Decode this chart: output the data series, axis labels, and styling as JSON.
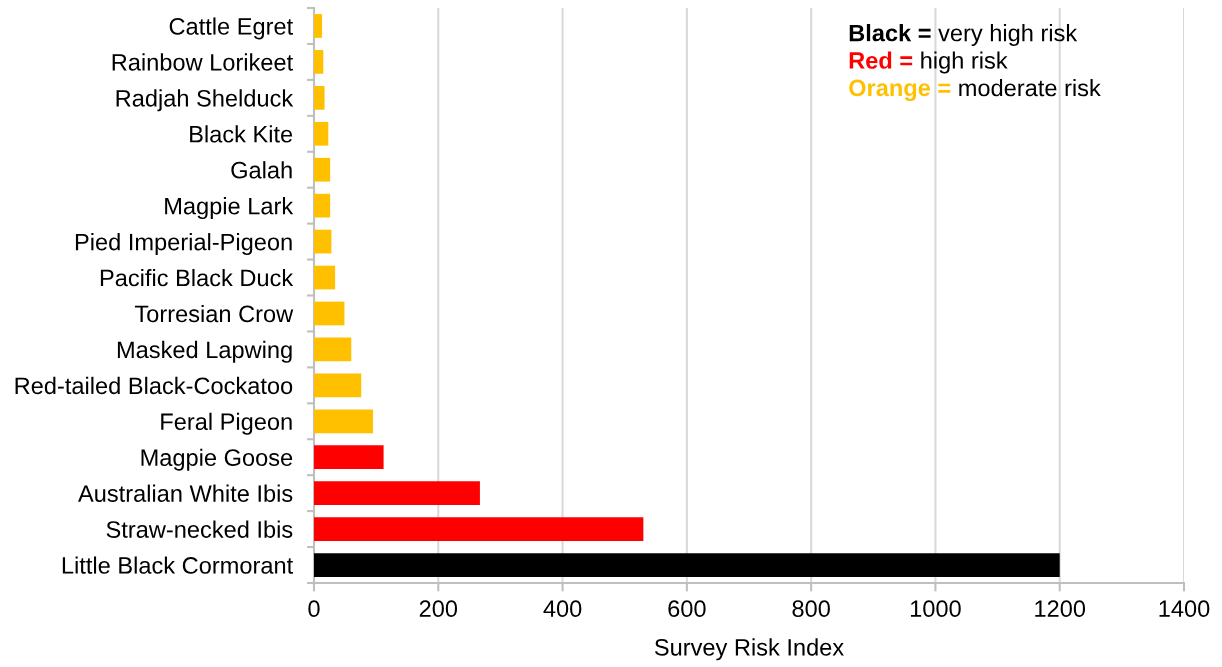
{
  "chart_data": {
    "type": "bar",
    "orientation": "horizontal",
    "categories": [
      "Cattle Egret",
      "Rainbow Lorikeet",
      "Radjah Shelduck",
      "Black Kite",
      "Galah",
      "Magpie Lark",
      "Pied Imperial-Pigeon",
      "Pacific Black Duck",
      "Torresian Crow",
      "Masked Lapwing",
      "Red-tailed Black-Cockatoo",
      "Feral Pigeon",
      "Magpie Goose",
      "Australian White Ibis",
      "Straw-necked Ibis",
      "Little Black Cormorant"
    ],
    "values": [
      13,
      15,
      17,
      23,
      26,
      26,
      28,
      34,
      49,
      60,
      76,
      95,
      112,
      267,
      530,
      1200
    ],
    "colors": [
      "#ffc000",
      "#ffc000",
      "#ffc000",
      "#ffc000",
      "#ffc000",
      "#ffc000",
      "#ffc000",
      "#ffc000",
      "#ffc000",
      "#ffc000",
      "#ffc000",
      "#ffc000",
      "#ff0000",
      "#ff0000",
      "#ff0000",
      "#000000"
    ],
    "xlabel": "Survey Risk Index",
    "xlim": [
      0,
      1400
    ],
    "xticks": [
      0,
      200,
      400,
      600,
      800,
      1000,
      1200,
      1400
    ],
    "grid": "x",
    "annotations": [
      "Black = very high risk",
      "Red = high risk",
      "Orange = moderate risk"
    ]
  }
}
